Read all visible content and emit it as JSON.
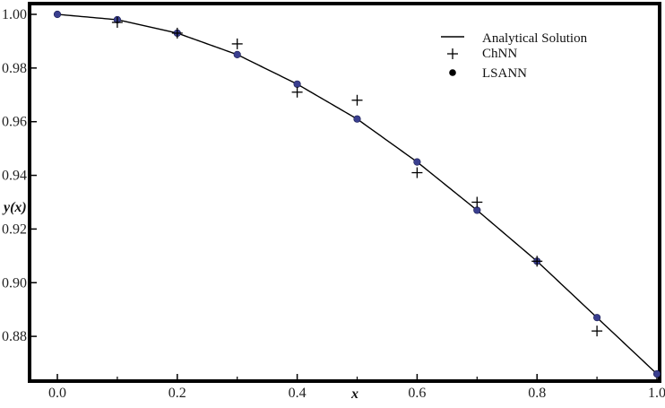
{
  "chart_data": {
    "type": "scatter",
    "xlabel": "x",
    "ylabel": "y(x)",
    "xlim": [
      0.0,
      1.0
    ],
    "ylim": [
      0.865,
      1.0
    ],
    "grid": false,
    "legend_position": "top-right",
    "x_ticks": [
      "0.0",
      "0.2",
      "0.4",
      "0.6",
      "0.8",
      "1.0"
    ],
    "x_minor_ticks": [
      "0.1",
      "0.3",
      "0.5",
      "0.7",
      "0.9"
    ],
    "y_ticks": [
      "0.88",
      "0.90",
      "0.92",
      "0.94",
      "0.96",
      "0.98",
      "1.00"
    ],
    "series": [
      {
        "name": "Analytical Solution",
        "style": "line",
        "color": "#000000",
        "x": [
          0.0,
          0.1,
          0.2,
          0.3,
          0.4,
          0.5,
          0.6,
          0.7,
          0.8,
          0.9,
          1.0
        ],
        "y": [
          1.0,
          0.998,
          0.993,
          0.985,
          0.974,
          0.961,
          0.945,
          0.927,
          0.908,
          0.887,
          0.866
        ]
      },
      {
        "name": "ChNN",
        "style": "plus",
        "color": "#000000",
        "x": [
          0.1,
          0.2,
          0.3,
          0.4,
          0.5,
          0.6,
          0.7,
          0.8,
          0.9
        ],
        "y": [
          0.997,
          0.993,
          0.989,
          0.971,
          0.968,
          0.941,
          0.93,
          0.908,
          0.882
        ]
      },
      {
        "name": "LSANN",
        "style": "dot",
        "color": "#3a3f8f",
        "x": [
          0.0,
          0.1,
          0.2,
          0.3,
          0.4,
          0.5,
          0.6,
          0.7,
          0.8,
          0.9,
          1.0
        ],
        "y": [
          1.0,
          0.998,
          0.993,
          0.985,
          0.974,
          0.961,
          0.945,
          0.927,
          0.908,
          0.887,
          0.866
        ]
      }
    ]
  }
}
